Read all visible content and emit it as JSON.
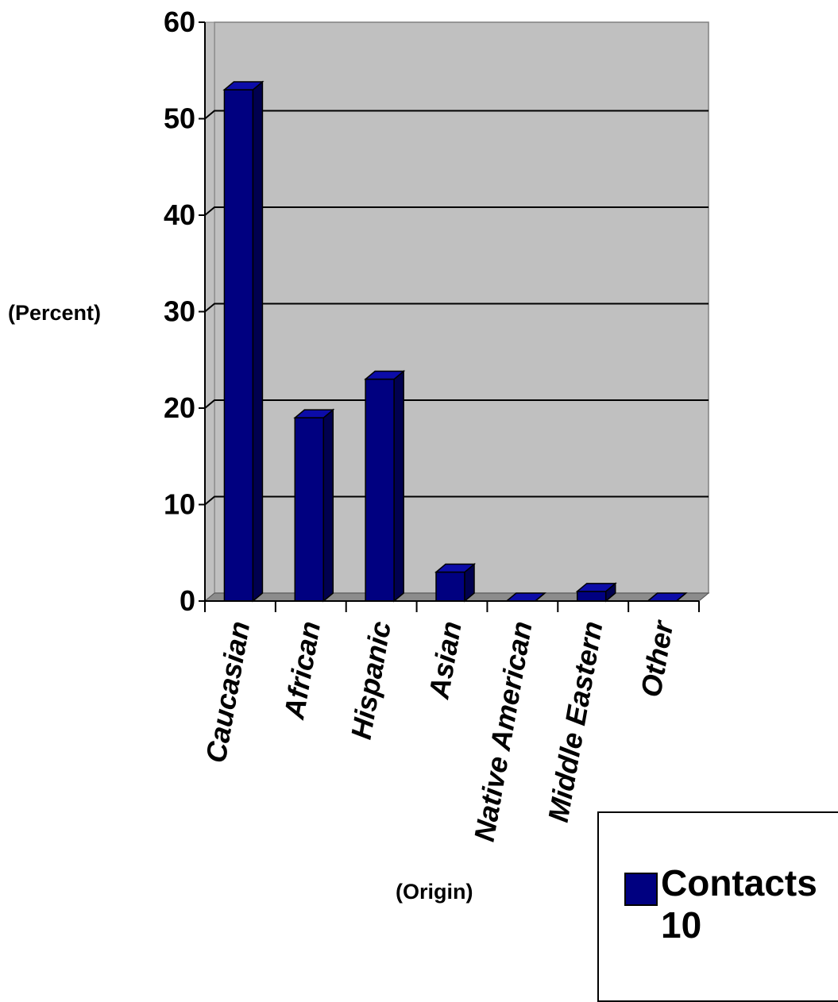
{
  "chart_data": {
    "type": "bar",
    "categories": [
      "Caucasian",
      "African",
      "Hispanic",
      "Asian",
      "Native American",
      "Middle Eastern",
      "Other"
    ],
    "series": [
      {
        "name": "Contacts 10",
        "values": [
          53,
          19,
          23,
          3,
          0,
          1,
          0
        ]
      }
    ],
    "ylabel": "(Percent)",
    "xlabel": "(Origin)",
    "ylim": [
      0,
      60
    ],
    "yticks": [
      0,
      10,
      20,
      30,
      40,
      50,
      60
    ],
    "grid": true,
    "legend_position": "bottom-right",
    "colors": {
      "bar": "#000080",
      "bar_side": "#00004f",
      "bar_top": "#0c0ca8",
      "plot_bg": "#c0c0c0",
      "floor": "#8c8c8c"
    }
  }
}
